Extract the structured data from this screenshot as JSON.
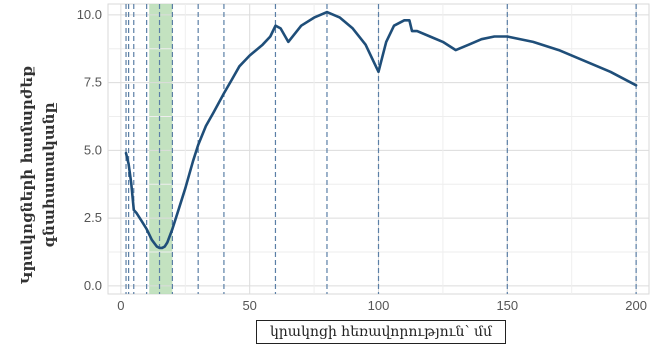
{
  "chart_data": {
    "type": "line",
    "title": "",
    "xlabel": "կրակոցի հեռավորություն՝ մմ",
    "ylabel_lines": [
      "Կրակոցների համարժեք",
      "գնահատականը"
    ],
    "xlim": [
      -5,
      205
    ],
    "ylim": [
      -0.3,
      10.4
    ],
    "xticks": [
      0,
      50,
      100,
      150,
      200
    ],
    "yticks": [
      0.0,
      2.5,
      5.0,
      7.5,
      10.0
    ],
    "ytick_labels": [
      "0.0",
      "2.5",
      "5.0",
      "7.5",
      "10.0"
    ],
    "grid": true,
    "highlight_band": {
      "from": 11,
      "to": 20,
      "color": "#b9ddb5"
    },
    "dashed_vlines": [
      2,
      3,
      5,
      10,
      15,
      20,
      30,
      40,
      60,
      80,
      100,
      150,
      200
    ],
    "series": [
      {
        "color": "#1f4e79",
        "x": [
          2,
          3,
          4,
          5,
          6,
          8,
          10,
          12,
          14,
          15,
          16,
          17,
          18,
          20,
          22,
          25,
          28,
          30,
          33,
          36,
          40,
          43,
          46,
          50,
          55,
          58,
          60,
          62,
          65,
          70,
          75,
          80,
          85,
          90,
          95,
          98,
          100,
          103,
          106,
          110,
          112,
          113,
          115,
          120,
          125,
          130,
          135,
          140,
          145,
          150,
          160,
          170,
          180,
          190,
          200
        ],
        "y": [
          4.9,
          4.5,
          3.8,
          2.8,
          2.7,
          2.4,
          2.1,
          1.7,
          1.45,
          1.4,
          1.4,
          1.45,
          1.6,
          2.1,
          2.7,
          3.6,
          4.6,
          5.2,
          5.9,
          6.4,
          7.1,
          7.6,
          8.1,
          8.5,
          8.9,
          9.2,
          9.6,
          9.5,
          9.0,
          9.6,
          9.9,
          10.1,
          9.9,
          9.5,
          8.9,
          8.3,
          7.9,
          9.0,
          9.6,
          9.8,
          9.8,
          9.4,
          9.4,
          9.2,
          9.0,
          8.7,
          8.9,
          9.1,
          9.2,
          9.2,
          9.0,
          8.7,
          8.3,
          7.9,
          7.4
        ]
      }
    ]
  }
}
